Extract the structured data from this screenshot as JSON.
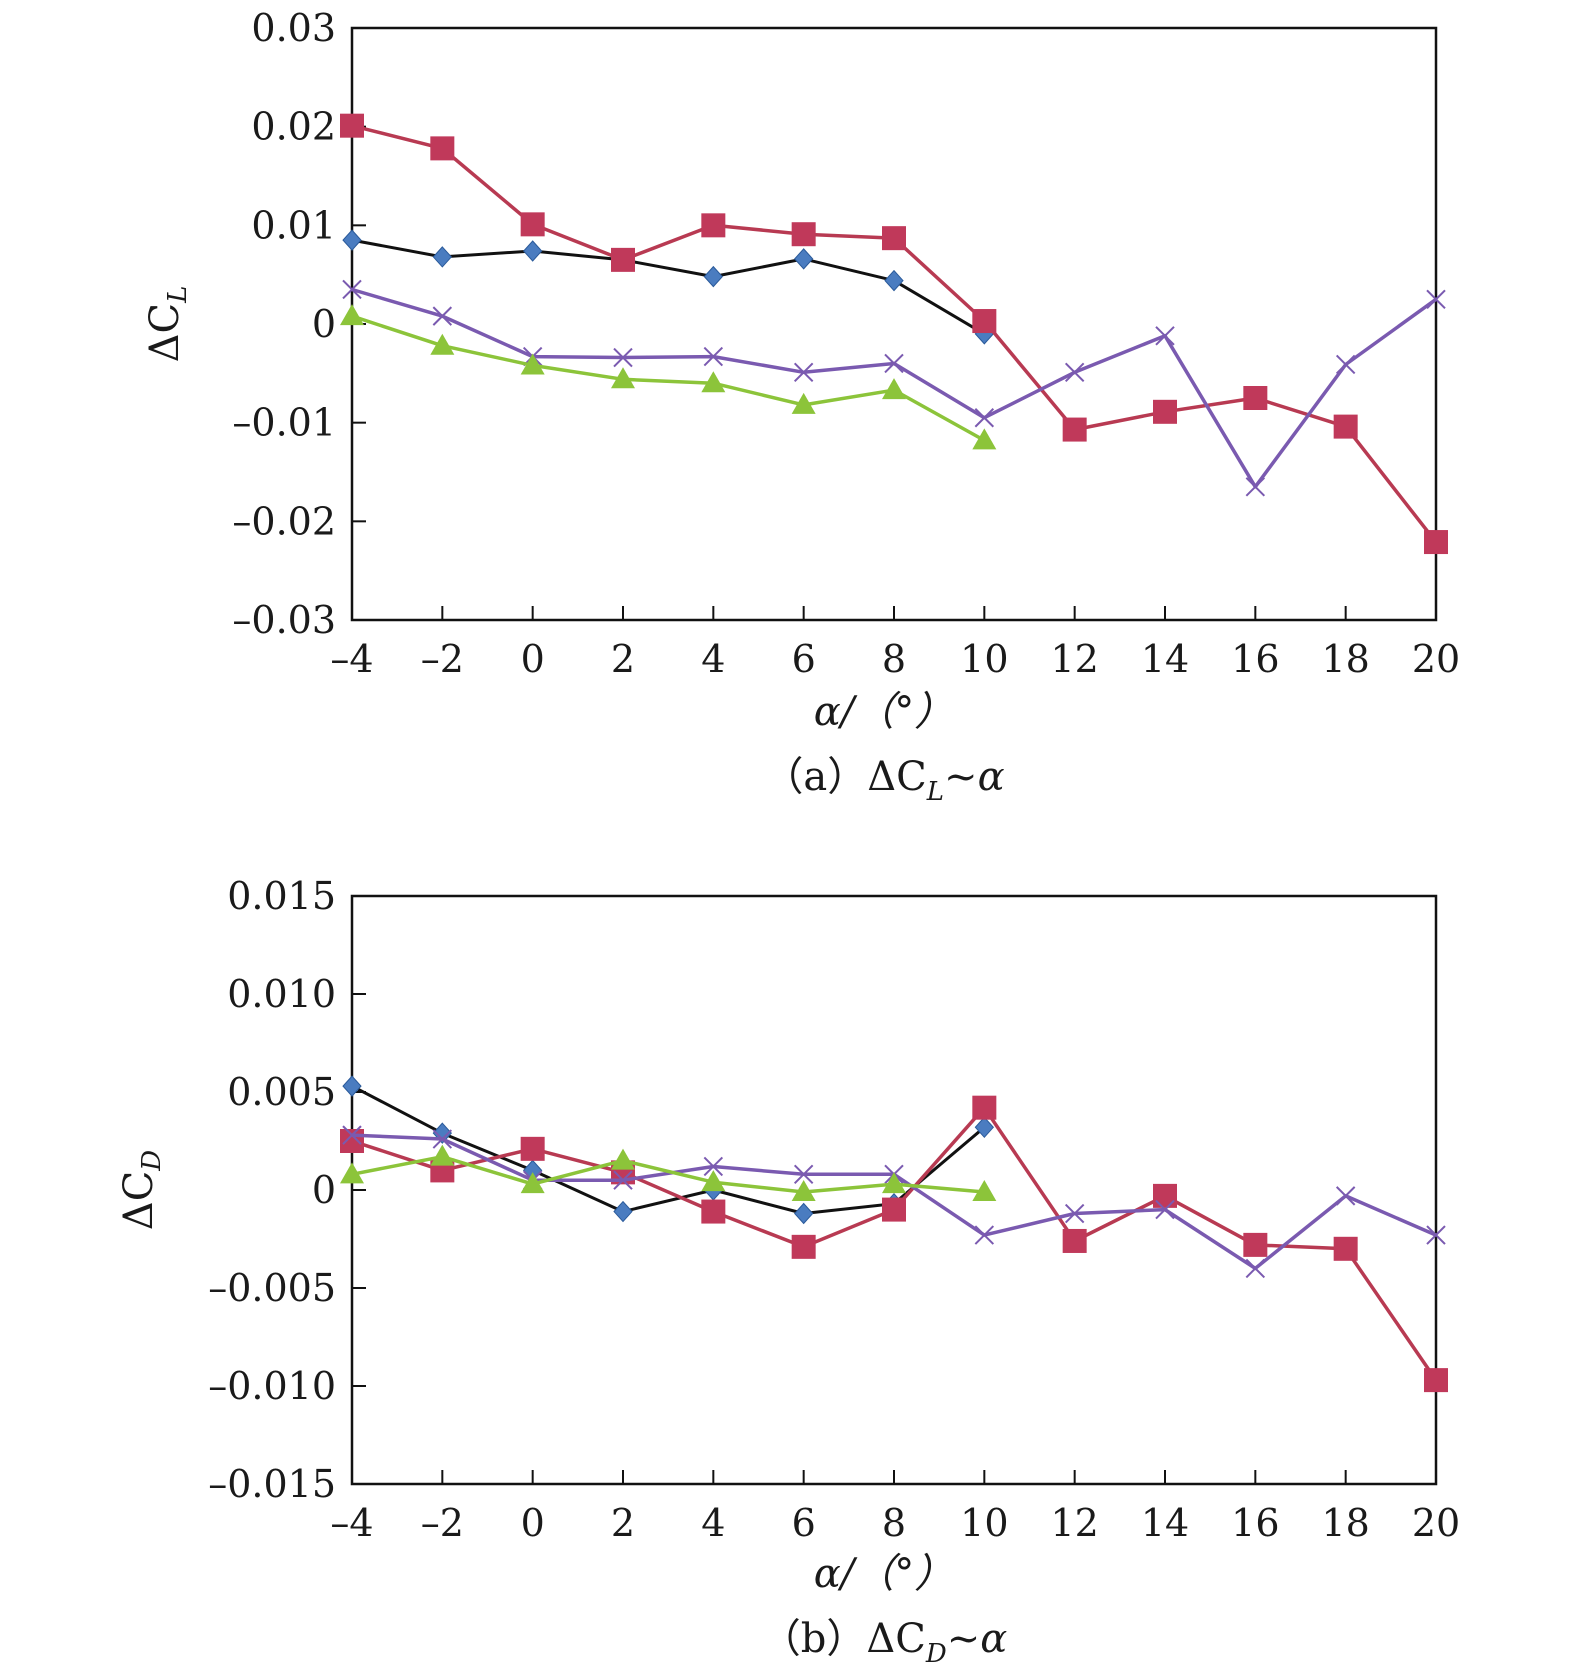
{
  "chart_data": [
    {
      "type": "line",
      "panel": "a",
      "caption": {
        "prefix": "（a）",
        "symbol": "ΔC",
        "sub": "L",
        "suffix": "~α"
      },
      "ylabel": {
        "symbol": "ΔC",
        "sub": "L"
      },
      "xlabel": "α/（°）",
      "xlim": [
        -4,
        20
      ],
      "ylim": [
        -0.03,
        0.03
      ],
      "xticks": [
        -4,
        -2,
        0,
        2,
        4,
        6,
        8,
        10,
        12,
        14,
        16,
        18,
        20
      ],
      "xtick_labels": [
        "–4",
        "–2",
        "0",
        "2",
        "4",
        "6",
        "8",
        "10",
        "12",
        "14",
        "16",
        "18",
        "20"
      ],
      "yticks": [
        -0.03,
        -0.02,
        -0.01,
        0,
        0.01,
        0.02,
        0.03
      ],
      "ytick_labels": [
        "–0.03",
        "–0.02",
        "–0.01",
        "0",
        "0.01",
        "0.02",
        "0.03"
      ],
      "series": [
        {
          "name": "black-diamond",
          "color": "#111111",
          "marker": "diamond",
          "markerColor": "#4a7cc0",
          "x": [
            -4,
            -2,
            0,
            2,
            4,
            6,
            8,
            10
          ],
          "y": [
            0.0085,
            0.0068,
            0.0074,
            0.0065,
            0.0048,
            0.0066,
            0.0044,
            -0.001
          ]
        },
        {
          "name": "red-square",
          "color": "#b83a52",
          "marker": "square",
          "markerColor": "#c0395a",
          "x": [
            -4,
            -2,
            0,
            2,
            4,
            6,
            8,
            10,
            12,
            14,
            16,
            18,
            20
          ],
          "y": [
            0.0201,
            0.0178,
            0.0101,
            0.0065,
            0.01,
            0.0091,
            0.0087,
            0.0003,
            -0.0107,
            -0.0089,
            -0.0075,
            -0.0104,
            -0.0221
          ]
        },
        {
          "name": "purple-x",
          "color": "#7a5ab0",
          "marker": "x",
          "markerColor": "#7a5ab0",
          "x": [
            -4,
            -2,
            0,
            2,
            4,
            6,
            8,
            10,
            12,
            14,
            16,
            18,
            20
          ],
          "y": [
            0.0035,
            0.0008,
            -0.0033,
            -0.0034,
            -0.0033,
            -0.0049,
            -0.004,
            -0.0095,
            -0.0049,
            -0.0012,
            -0.0165,
            -0.0041,
            0.0025
          ]
        },
        {
          "name": "green-triangle",
          "color": "#8cc43a",
          "marker": "triangle",
          "markerColor": "#8cc43a",
          "x": [
            -4,
            -2,
            0,
            2,
            4,
            6,
            8,
            10
          ],
          "y": [
            0.0008,
            -0.0022,
            -0.0042,
            -0.0056,
            -0.006,
            -0.0082,
            -0.0067,
            -0.0118
          ]
        }
      ]
    },
    {
      "type": "line",
      "panel": "b",
      "caption": {
        "prefix": "（b）",
        "symbol": "ΔC",
        "sub": "D",
        "suffix": "~α"
      },
      "ylabel": {
        "symbol": "ΔC",
        "sub": "D"
      },
      "xlabel": "α/（°）",
      "xlim": [
        -4,
        20
      ],
      "ylim": [
        -0.015,
        0.015
      ],
      "xticks": [
        -4,
        -2,
        0,
        2,
        4,
        6,
        8,
        10,
        12,
        14,
        16,
        18,
        20
      ],
      "xtick_labels": [
        "–4",
        "–2",
        "0",
        "2",
        "4",
        "6",
        "8",
        "10",
        "12",
        "14",
        "16",
        "18",
        "20"
      ],
      "yticks": [
        -0.015,
        -0.01,
        -0.005,
        0,
        0.005,
        0.01,
        0.015
      ],
      "ytick_labels": [
        "–0.015",
        "–0.010",
        "–0.005",
        "0",
        "0.005",
        "0.010",
        "0.015"
      ],
      "series": [
        {
          "name": "black-diamond",
          "color": "#111111",
          "marker": "diamond",
          "markerColor": "#4a7cc0",
          "x": [
            -4,
            -2,
            0,
            2,
            4,
            6,
            8,
            10
          ],
          "y": [
            0.0053,
            0.0029,
            0.001,
            -0.0011,
            0.0,
            -0.0012,
            -0.0007,
            0.0032
          ]
        },
        {
          "name": "red-square",
          "color": "#b83a52",
          "marker": "square",
          "markerColor": "#c0395a",
          "x": [
            -4,
            -2,
            0,
            2,
            4,
            6,
            8,
            10,
            12,
            14,
            16,
            18,
            20
          ],
          "y": [
            0.0025,
            0.001,
            0.0021,
            0.0009,
            -0.0011,
            -0.0029,
            -0.001,
            0.0042,
            -0.0026,
            -0.0003,
            -0.0028,
            -0.003,
            -0.0097
          ]
        },
        {
          "name": "purple-x",
          "color": "#7a5ab0",
          "marker": "x",
          "markerColor": "#7a5ab0",
          "x": [
            -4,
            -2,
            0,
            2,
            4,
            6,
            8,
            10,
            12,
            14,
            16,
            18,
            20
          ],
          "y": [
            0.0028,
            0.0026,
            0.0005,
            0.0005,
            0.0012,
            0.0008,
            0.0008,
            -0.0023,
            -0.0012,
            -0.001,
            -0.004,
            -0.0003,
            -0.0023
          ]
        },
        {
          "name": "green-triangle",
          "color": "#8cc43a",
          "marker": "triangle",
          "markerColor": "#8cc43a",
          "x": [
            -4,
            -2,
            0,
            2,
            4,
            6,
            8,
            10
          ],
          "y": [
            0.0008,
            0.0017,
            0.0003,
            0.0015,
            0.0004,
            -0.0001,
            0.0003,
            -0.0001
          ]
        }
      ]
    }
  ]
}
